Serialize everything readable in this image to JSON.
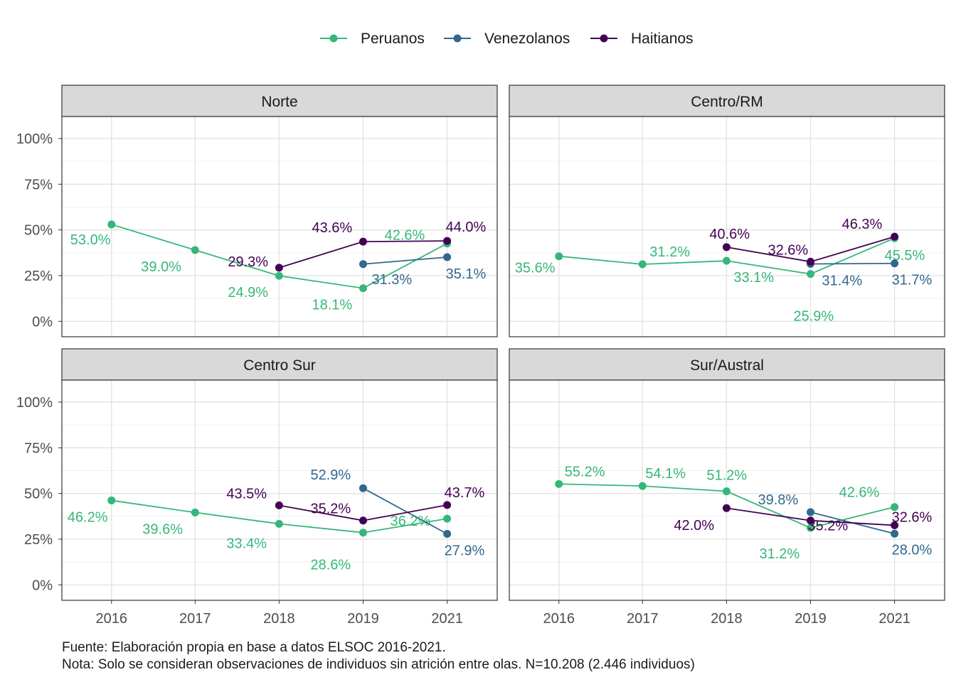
{
  "chart_data": {
    "type": "line",
    "facets": [
      "Norte",
      "Centro/RM",
      "Centro Sur",
      "Sur/Austral"
    ],
    "x": [
      "2016",
      "2017",
      "2018",
      "2019",
      "2021"
    ],
    "y_ticks": [
      "0%",
      "25%",
      "50%",
      "75%",
      "100%"
    ],
    "ylim": [
      0,
      100
    ],
    "grid": true,
    "legend_position": "top",
    "legend": [
      "Peruanos",
      "Venezolanos",
      "Haitianos"
    ],
    "colors": {
      "Peruanos": "#35b779",
      "Venezolanos": "#31688e",
      "Haitianos": "#440154"
    },
    "panels": [
      {
        "title": "Norte",
        "series": [
          {
            "name": "Peruanos",
            "x": [
              "2016",
              "2017",
              "2018",
              "2019",
              "2021"
            ],
            "values": [
              53.0,
              39.0,
              24.9,
              18.1,
              42.6
            ],
            "labels": [
              "53.0%",
              "39.0%",
              "24.9%",
              "18.1%",
              "42.6%"
            ]
          },
          {
            "name": "Venezolanos",
            "x": [
              "2019",
              "2021"
            ],
            "values": [
              31.3,
              35.1
            ],
            "labels": [
              "31.3%",
              "35.1%"
            ]
          },
          {
            "name": "Haitianos",
            "x": [
              "2018",
              "2019",
              "2021"
            ],
            "values": [
              29.3,
              43.6,
              44.0
            ],
            "labels": [
              "29.3%",
              "43.6%",
              "44.0%"
            ]
          }
        ]
      },
      {
        "title": "Centro/RM",
        "series": [
          {
            "name": "Peruanos",
            "x": [
              "2016",
              "2017",
              "2018",
              "2019",
              "2021"
            ],
            "values": [
              35.6,
              31.2,
              33.1,
              25.9,
              45.5
            ],
            "labels": [
              "35.6%",
              "31.2%",
              "33.1%",
              "25.9%",
              "45.5%"
            ]
          },
          {
            "name": "Venezolanos",
            "x": [
              "2019",
              "2021"
            ],
            "values": [
              31.4,
              31.7
            ],
            "labels": [
              "31.4%",
              "31.7%"
            ]
          },
          {
            "name": "Haitianos",
            "x": [
              "2018",
              "2019",
              "2021"
            ],
            "values": [
              40.6,
              32.6,
              46.3
            ],
            "labels": [
              "40.6%",
              "32.6%",
              "46.3%"
            ]
          }
        ]
      },
      {
        "title": "Centro Sur",
        "series": [
          {
            "name": "Peruanos",
            "x": [
              "2016",
              "2017",
              "2018",
              "2019",
              "2021"
            ],
            "values": [
              46.2,
              39.6,
              33.4,
              28.6,
              36.2
            ],
            "labels": [
              "46.2%",
              "39.6%",
              "33.4%",
              "28.6%",
              "36.2%"
            ]
          },
          {
            "name": "Venezolanos",
            "x": [
              "2019",
              "2021"
            ],
            "values": [
              52.9,
              27.9
            ],
            "labels": [
              "52.9%",
              "27.9%"
            ]
          },
          {
            "name": "Haitianos",
            "x": [
              "2018",
              "2019",
              "2021"
            ],
            "values": [
              43.5,
              35.2,
              43.7
            ],
            "labels": [
              "43.5%",
              "35.2%",
              "43.7%"
            ]
          }
        ]
      },
      {
        "title": "Sur/Austral",
        "series": [
          {
            "name": "Peruanos",
            "x": [
              "2016",
              "2017",
              "2018",
              "2019",
              "2021"
            ],
            "values": [
              55.2,
              54.1,
              51.2,
              31.2,
              42.6
            ],
            "labels": [
              "55.2%",
              "54.1%",
              "51.2%",
              "31.2%",
              "42.6%"
            ]
          },
          {
            "name": "Venezolanos",
            "x": [
              "2019",
              "2021"
            ],
            "values": [
              39.8,
              28.0
            ],
            "labels": [
              "39.8%",
              "28.0%"
            ]
          },
          {
            "name": "Haitianos",
            "x": [
              "2018",
              "2019",
              "2021"
            ],
            "values": [
              42.0,
              35.2,
              32.6
            ],
            "labels": [
              "42.0%",
              "35.2%",
              "32.6%"
            ]
          }
        ]
      }
    ],
    "caption": [
      "Fuente: Elaboración propia en base a datos ELSOC 2016-2021.",
      "Nota: Solo se consideran observaciones de individuos sin atrición entre olas. N=10.208 (2.446 individuos)"
    ]
  }
}
